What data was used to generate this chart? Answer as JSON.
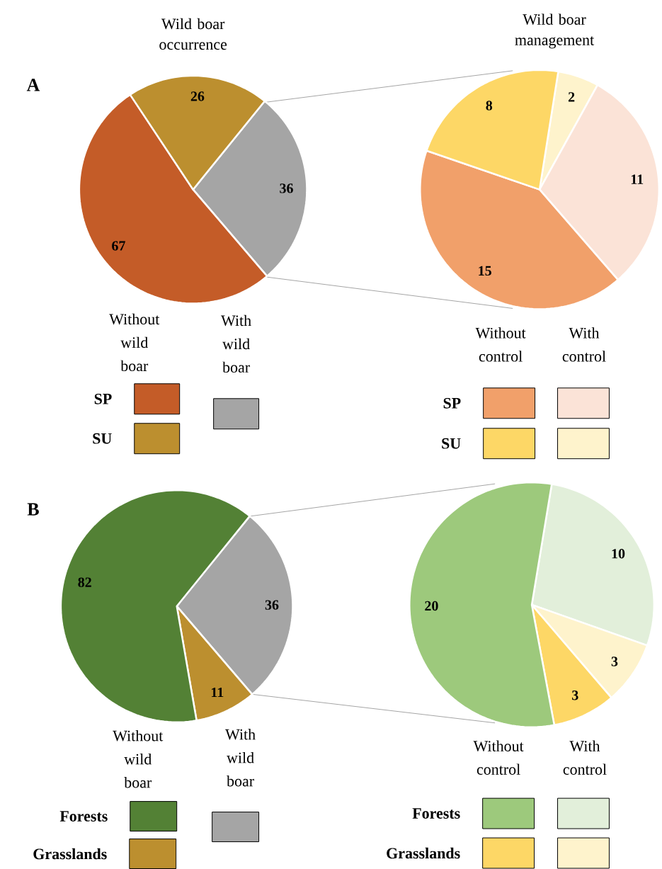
{
  "chart_data": [
    {
      "type": "pie",
      "title": "Wild boar occurrence",
      "categories": [
        null,
        "SP",
        "SU"
      ],
      "values": [
        36,
        67,
        26
      ],
      "colors": [
        "#a5a5a5",
        "#c45c28",
        "#bc8f2f"
      ],
      "data_labels": true,
      "legend": "bottom",
      "annotations": [
        "A",
        "Without wild boar",
        "With wild boar"
      ]
    },
    {
      "type": "pie",
      "title": "Wild boar management",
      "categories": [
        null,
        null,
        "SP",
        "SU"
      ],
      "values": [
        2,
        11,
        15,
        8
      ],
      "colors": [
        "#fef3cc",
        "#fbe3d7",
        "#f1a06a",
        "#fdd766"
      ],
      "data_labels": true,
      "legend": "bottom",
      "annotations": [
        "Without control",
        "With control"
      ]
    },
    {
      "type": "pie",
      "categories": [
        null,
        "Grasslands",
        "Forests"
      ],
      "values": [
        36,
        11,
        82
      ],
      "colors": [
        "#a5a5a5",
        "#bc8f2f",
        "#538135"
      ],
      "data_labels": true,
      "legend": "bottom",
      "annotations": [
        "B",
        "Without wild boar",
        "With wild boar"
      ]
    },
    {
      "type": "pie",
      "categories": [
        null,
        null,
        "Grasslands",
        "Forests"
      ],
      "values": [
        10,
        3,
        3,
        20
      ],
      "colors": [
        "#e2efda",
        "#fef3cc",
        "#fdd766",
        "#9dc97c"
      ],
      "data_labels": true,
      "legend": "bottom",
      "annotations": [
        "Without control",
        "With control"
      ]
    }
  ]
}
